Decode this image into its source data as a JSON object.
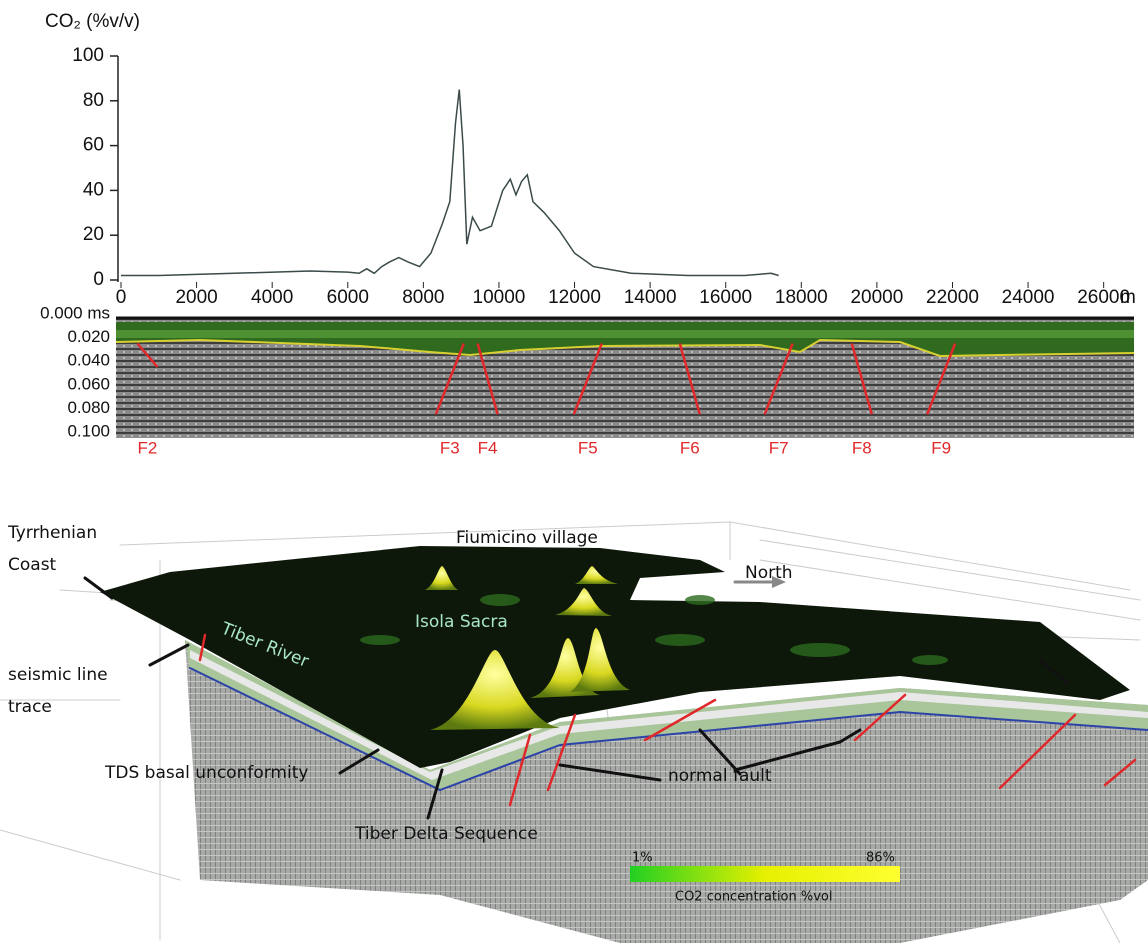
{
  "chart_data": [
    {
      "type": "line",
      "y_label": "CO₂ (%v/v)",
      "x_unit": "m",
      "x": [
        0,
        1000,
        3000,
        5000,
        6000,
        6300,
        6500,
        6700,
        6900,
        7100,
        7350,
        7600,
        7900,
        8200,
        8500,
        8700,
        8850,
        8950,
        9050,
        9150,
        9300,
        9500,
        9800,
        10100,
        10300,
        10450,
        10600,
        10750,
        10900,
        11200,
        11600,
        12000,
        12500,
        13500,
        15000,
        16500,
        17200,
        17400
      ],
      "series": [
        {
          "color": "#3b4a4a",
          "values": [
            2,
            2,
            3,
            4,
            3.5,
            3,
            5,
            3,
            6,
            8,
            10,
            8,
            6,
            12,
            25,
            35,
            70,
            85,
            60,
            16,
            28,
            22,
            24,
            40,
            45,
            38,
            44,
            47,
            35,
            30,
            22,
            12,
            6,
            3,
            2,
            2,
            3,
            2
          ]
        }
      ],
      "xlim": [
        0,
        26300
      ],
      "xticks": [
        0,
        2000,
        4000,
        6000,
        8000,
        10000,
        12000,
        14000,
        16000,
        18000,
        20000,
        22000,
        24000,
        26000
      ],
      "ylim": [
        0,
        100
      ],
      "yticks": [
        0,
        20,
        40,
        60,
        80,
        100
      ]
    },
    {
      "type": "section",
      "xlim": [
        0,
        26300
      ],
      "ylim": [
        0,
        0.1
      ],
      "yticks": [
        {
          "value": 0,
          "label": "0.000 ms"
        },
        {
          "value": 0.02,
          "label": "0.020"
        },
        {
          "value": 0.04,
          "label": "0.040"
        },
        {
          "value": 0.06,
          "label": "0.060"
        },
        {
          "value": 0.08,
          "label": "0.080"
        },
        {
          "value": 0.1,
          "label": "0.100"
        }
      ],
      "faults": [
        {
          "name": "F2",
          "x": 700
        },
        {
          "name": "F3",
          "x": 8700
        },
        {
          "name": "F4",
          "x": 9700
        },
        {
          "name": "F5",
          "x": 12350
        },
        {
          "name": "F6",
          "x": 15050
        },
        {
          "name": "F7",
          "x": 17400
        },
        {
          "name": "F8",
          "x": 19600
        },
        {
          "name": "F9",
          "x": 21700
        }
      ],
      "fault_color": "#e0282a"
    }
  ],
  "diagram": {
    "labels": {
      "coast_1": "Tyrrhenian",
      "coast_2": "Coast",
      "village": "Fiumicino village",
      "north": "North",
      "isola": "Isola Sacra",
      "river": "Tiber River",
      "trace_1": "seismic line",
      "trace_2": "trace",
      "tds": "TDS basal unconformity",
      "fault": "normal fault",
      "sequence": "Tiber Delta Sequence"
    },
    "colorbar": {
      "min": "1%",
      "max": "86%",
      "title": "CO2 concentration %vol"
    }
  }
}
